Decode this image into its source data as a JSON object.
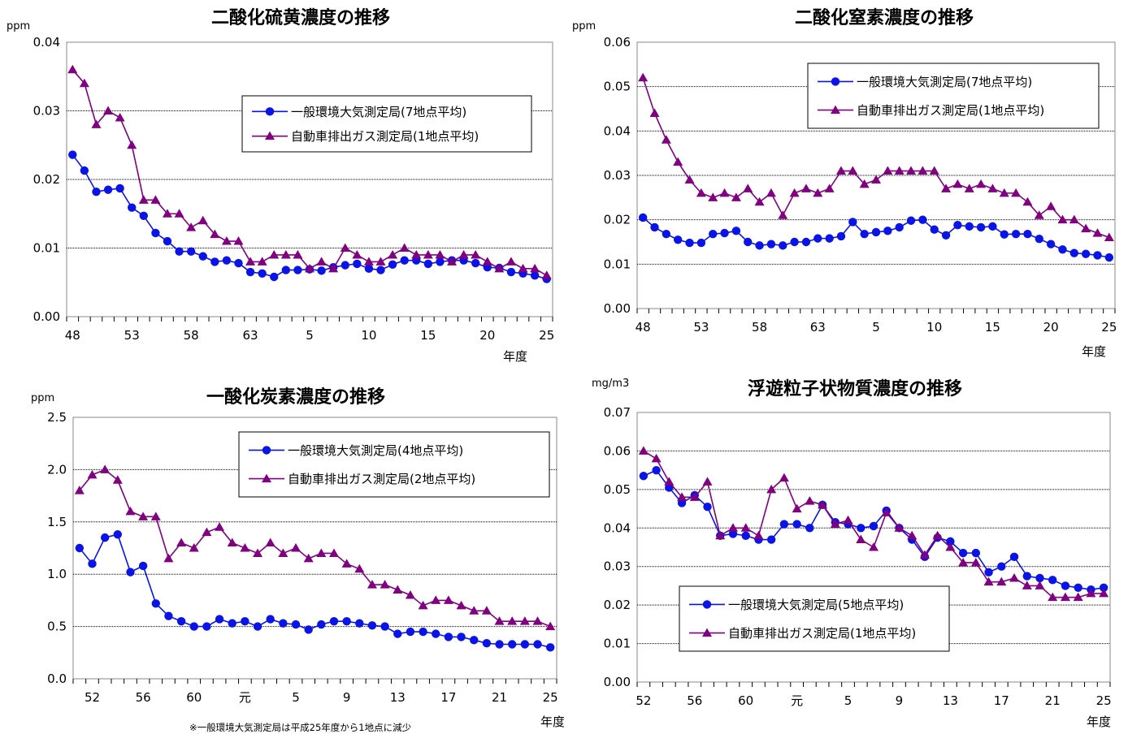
{
  "footnote": "※一般環境大気測定局は平成25年度から1地点に減少",
  "colors": {
    "general": "#0a14e6",
    "roadside": "#800080",
    "gridline": "#000000"
  },
  "chart_data": [
    {
      "type": "line",
      "title": "二酸化硫黄濃度の推移",
      "unit": "ppm",
      "xlabel": "年度",
      "ylim": [
        0,
        0.04
      ],
      "ytick_labels": [
        "0.00",
        "0.01",
        "0.02",
        "0.03",
        "0.04"
      ],
      "x_tick_labels": [
        "48",
        "53",
        "58",
        "63",
        "5",
        "10",
        "15",
        "20",
        "25"
      ],
      "x_tick_every": 5,
      "grid": "horizontal",
      "legend_position": "top-right",
      "x": [
        "48",
        "49",
        "50",
        "51",
        "52",
        "53",
        "54",
        "55",
        "56",
        "57",
        "58",
        "59",
        "60",
        "61",
        "62",
        "63",
        "元",
        "2",
        "3",
        "4",
        "5",
        "6",
        "7",
        "8",
        "9",
        "10",
        "11",
        "12",
        "13",
        "14",
        "15",
        "16",
        "17",
        "18",
        "19",
        "20",
        "21",
        "22",
        "23",
        "24",
        "25"
      ],
      "series": [
        {
          "name": "一般環境大気測定局(7地点平均)",
          "marker": "circle",
          "values": [
            0.0236,
            0.0213,
            0.0182,
            0.0185,
            0.0187,
            0.0159,
            0.0147,
            0.0122,
            0.011,
            0.0095,
            0.0095,
            0.0088,
            0.008,
            0.0082,
            0.0078,
            0.0065,
            0.0063,
            0.0058,
            0.0068,
            0.0068,
            0.0069,
            0.0067,
            0.0072,
            0.0075,
            0.0077,
            0.007,
            0.0068,
            0.0076,
            0.0082,
            0.0082,
            0.0077,
            0.008,
            0.0082,
            0.0082,
            0.0078,
            0.0072,
            0.0071,
            0.0065,
            0.0063,
            0.006,
            0.0055
          ]
        },
        {
          "name": "自動車排出ガス測定局(1地点平均)",
          "marker": "triangle",
          "values": [
            0.036,
            0.034,
            0.028,
            0.03,
            0.029,
            0.025,
            0.017,
            0.017,
            0.015,
            0.015,
            0.013,
            0.014,
            0.012,
            0.011,
            0.011,
            0.008,
            0.008,
            0.009,
            0.009,
            0.009,
            0.007,
            0.008,
            0.007,
            0.01,
            0.009,
            0.008,
            0.008,
            0.009,
            0.01,
            0.009,
            0.009,
            0.009,
            0.008,
            0.009,
            0.009,
            0.008,
            0.007,
            0.008,
            0.007,
            0.007,
            0.006
          ]
        }
      ]
    },
    {
      "type": "line",
      "title": "二酸化窒素濃度の推移",
      "unit": "ppm",
      "xlabel": "年度",
      "ylim": [
        0,
        0.06
      ],
      "ytick_labels": [
        "0.00",
        "0.01",
        "0.02",
        "0.03",
        "0.04",
        "0.05",
        "0.06"
      ],
      "x_tick_labels": [
        "48",
        "53",
        "58",
        "63",
        "5",
        "10",
        "15",
        "20",
        "25"
      ],
      "x_tick_every": 5,
      "grid": "horizontal",
      "legend_position": "top-right",
      "x": [
        "48",
        "49",
        "50",
        "51",
        "52",
        "53",
        "54",
        "55",
        "56",
        "57",
        "58",
        "59",
        "60",
        "61",
        "62",
        "63",
        "元",
        "2",
        "3",
        "4",
        "5",
        "6",
        "7",
        "8",
        "9",
        "10",
        "11",
        "12",
        "13",
        "14",
        "15",
        "16",
        "17",
        "18",
        "19",
        "20",
        "21",
        "22",
        "23",
        "24",
        "25"
      ],
      "series": [
        {
          "name": "一般環境大気測定局(7地点平均)",
          "marker": "circle",
          "values": [
            0.0205,
            0.0183,
            0.0168,
            0.0155,
            0.0148,
            0.0148,
            0.0168,
            0.017,
            0.0175,
            0.015,
            0.0142,
            0.0145,
            0.0142,
            0.015,
            0.015,
            0.0158,
            0.0158,
            0.0163,
            0.0195,
            0.0168,
            0.0172,
            0.0175,
            0.0183,
            0.0198,
            0.02,
            0.0178,
            0.0165,
            0.0188,
            0.0185,
            0.0183,
            0.0185,
            0.0167,
            0.0168,
            0.0168,
            0.0157,
            0.0145,
            0.0133,
            0.0125,
            0.0123,
            0.012,
            0.0115
          ]
        },
        {
          "name": "自動車排出ガス測定局(1地点平均)",
          "marker": "triangle",
          "values": [
            0.052,
            0.044,
            0.038,
            0.033,
            0.029,
            0.026,
            0.025,
            0.026,
            0.025,
            0.027,
            0.024,
            0.026,
            0.021,
            0.026,
            0.027,
            0.026,
            0.027,
            0.031,
            0.031,
            0.028,
            0.029,
            0.031,
            0.031,
            0.031,
            0.031,
            0.031,
            0.027,
            0.028,
            0.027,
            0.028,
            0.027,
            0.026,
            0.026,
            0.024,
            0.021,
            0.023,
            0.02,
            0.02,
            0.018,
            0.017,
            0.016
          ]
        }
      ]
    },
    {
      "type": "line",
      "title": "一酸化炭素濃度の推移",
      "unit": "ppm",
      "xlabel": "年度",
      "ylim": [
        0,
        2.5
      ],
      "ytick_labels": [
        "0.0",
        "0.5",
        "1.0",
        "1.5",
        "2.0",
        "2.5"
      ],
      "x_tick_labels": [
        "52",
        "56",
        "60",
        "元",
        "5",
        "9",
        "13",
        "17",
        "21",
        "25"
      ],
      "x_tick_every": 4,
      "x_tick_offset": 1,
      "grid": "horizontal",
      "legend_position": "top-right",
      "x": [
        "51",
        "52",
        "53",
        "54",
        "55",
        "56",
        "57",
        "58",
        "59",
        "60",
        "61",
        "62",
        "63",
        "元",
        "2",
        "3",
        "4",
        "5",
        "6",
        "7",
        "8",
        "9",
        "10",
        "11",
        "12",
        "13",
        "14",
        "15",
        "16",
        "17",
        "18",
        "19",
        "20",
        "21",
        "22",
        "23",
        "24",
        "25"
      ],
      "series": [
        {
          "name": "一般環境大気測定局(4地点平均)",
          "marker": "circle",
          "values": [
            1.25,
            1.1,
            1.35,
            1.38,
            1.02,
            1.08,
            0.72,
            0.6,
            0.55,
            0.5,
            0.5,
            0.57,
            0.53,
            0.55,
            0.5,
            0.57,
            0.53,
            0.52,
            0.47,
            0.52,
            0.55,
            0.55,
            0.53,
            0.51,
            0.5,
            0.43,
            0.45,
            0.45,
            0.43,
            0.4,
            0.4,
            0.37,
            0.34,
            0.33,
            0.33,
            0.33,
            0.33,
            0.3
          ]
        },
        {
          "name": "自動車排出ガス測定局(2地点平均)",
          "marker": "triangle",
          "values": [
            1.8,
            1.95,
            2.0,
            1.9,
            1.6,
            1.55,
            1.55,
            1.15,
            1.3,
            1.25,
            1.4,
            1.45,
            1.3,
            1.25,
            1.2,
            1.3,
            1.2,
            1.25,
            1.15,
            1.2,
            1.2,
            1.1,
            1.05,
            0.9,
            0.9,
            0.85,
            0.8,
            0.7,
            0.75,
            0.75,
            0.7,
            0.65,
            0.65,
            0.55,
            0.55,
            0.55,
            0.55,
            0.5
          ]
        }
      ]
    },
    {
      "type": "line",
      "title": "浮遊粒子状物質濃度の推移",
      "unit": "mg/m3",
      "xlabel": "年度",
      "ylim": [
        0,
        0.07
      ],
      "ytick_labels": [
        "0.00",
        "0.01",
        "0.02",
        "0.03",
        "0.04",
        "0.05",
        "0.06",
        "0.07"
      ],
      "x_tick_labels": [
        "52",
        "56",
        "60",
        "元",
        "5",
        "9",
        "13",
        "17",
        "21",
        "25"
      ],
      "x_tick_every": 4,
      "x_tick_offset": 0,
      "grid": "horizontal",
      "legend_position": "bottom-left",
      "x": [
        "52",
        "53",
        "54",
        "55",
        "56",
        "57",
        "58",
        "59",
        "60",
        "61",
        "62",
        "63",
        "元",
        "2",
        "3",
        "4",
        "5",
        "6",
        "7",
        "8",
        "9",
        "10",
        "11",
        "12",
        "13",
        "14",
        "15",
        "16",
        "17",
        "18",
        "19",
        "20",
        "21",
        "22",
        "23",
        "24",
        "25"
      ],
      "series": [
        {
          "name": "一般環境大気測定局(5地点平均)",
          "marker": "circle",
          "values": [
            0.0535,
            0.055,
            0.0505,
            0.0465,
            0.0485,
            0.0455,
            0.038,
            0.0385,
            0.038,
            0.037,
            0.037,
            0.041,
            0.041,
            0.04,
            0.046,
            0.0415,
            0.041,
            0.04,
            0.0405,
            0.0445,
            0.04,
            0.037,
            0.0325,
            0.0375,
            0.0365,
            0.0335,
            0.0335,
            0.0285,
            0.03,
            0.0325,
            0.0275,
            0.027,
            0.0265,
            0.025,
            0.0245,
            0.024,
            0.0245
          ]
        },
        {
          "name": "自動車排出ガス測定局(1地点平均)",
          "marker": "triangle",
          "values": [
            0.06,
            0.058,
            0.052,
            0.048,
            0.048,
            0.052,
            0.038,
            0.04,
            0.04,
            0.038,
            0.05,
            0.053,
            0.045,
            0.047,
            0.046,
            0.041,
            0.042,
            0.037,
            0.035,
            0.044,
            0.04,
            0.038,
            0.033,
            0.038,
            0.035,
            0.031,
            0.031,
            0.026,
            0.026,
            0.027,
            0.025,
            0.025,
            0.022,
            0.022,
            0.022,
            0.023,
            0.023
          ]
        }
      ]
    }
  ]
}
